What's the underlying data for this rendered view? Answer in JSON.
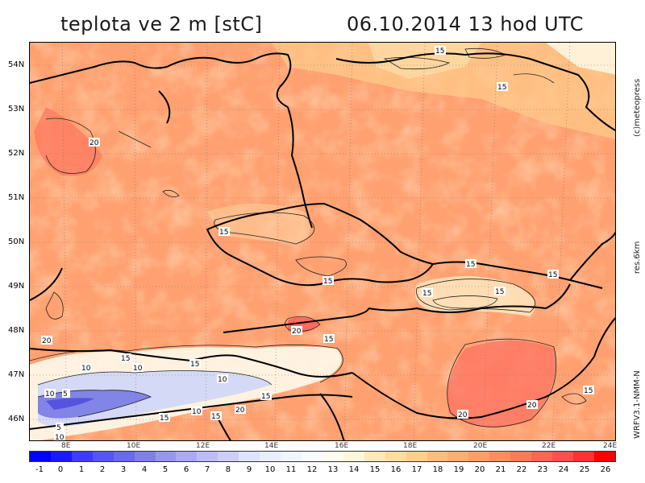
{
  "header": {
    "title_left": "teplota ve 2 m [stC]",
    "title_right": "06.10.2014   13 hod UTC"
  },
  "side": {
    "credit": "(c)meteopress",
    "resolution": "res.6km",
    "model": "WRFV3.1-NMM-N"
  },
  "map": {
    "lat_labels": [
      "54N",
      "53N",
      "52N",
      "51N",
      "50N",
      "49N",
      "48N",
      "47N",
      "46N"
    ],
    "lon_labels": [
      "8E",
      "10E",
      "12E",
      "14E",
      "16E",
      "18E",
      "20E",
      "22E",
      "24E"
    ],
    "contour_labels": [
      "15",
      "15",
      "20",
      "15",
      "15",
      "15",
      "15",
      "15",
      "15",
      "20",
      "20",
      "15",
      "15",
      "10",
      "10",
      "15",
      "10",
      "5",
      "10",
      "15",
      "10",
      "15",
      "20",
      "5",
      "10",
      "15",
      "20",
      "15",
      "20"
    ]
  },
  "colorbar": {
    "ticks": [
      "-1",
      "0",
      "1",
      "2",
      "3",
      "4",
      "5",
      "6",
      "7",
      "8",
      "9",
      "10",
      "11",
      "12",
      "13",
      "14",
      "15",
      "16",
      "17",
      "18",
      "19",
      "20",
      "21",
      "22",
      "23",
      "24",
      "25",
      "26"
    ],
    "colors": [
      "#0000ff",
      "#1a1aff",
      "#3d3dff",
      "#5555f5",
      "#6a6aee",
      "#7f7fe8",
      "#9696ee",
      "#aaaaf3",
      "#bdbdf6",
      "#cdcdf8",
      "#dde3fb",
      "#e8eefc",
      "#f0f6fc",
      "#f8fbff",
      "#fffcf0",
      "#fff5d8",
      "#ffe9b8",
      "#ffdca0",
      "#ffcf8c",
      "#ffbe7d",
      "#ffb070",
      "#ff9f66",
      "#ff8d60",
      "#ff7a5a",
      "#ff6656",
      "#ff4e4e",
      "#ff3333",
      "#ff0000"
    ]
  }
}
